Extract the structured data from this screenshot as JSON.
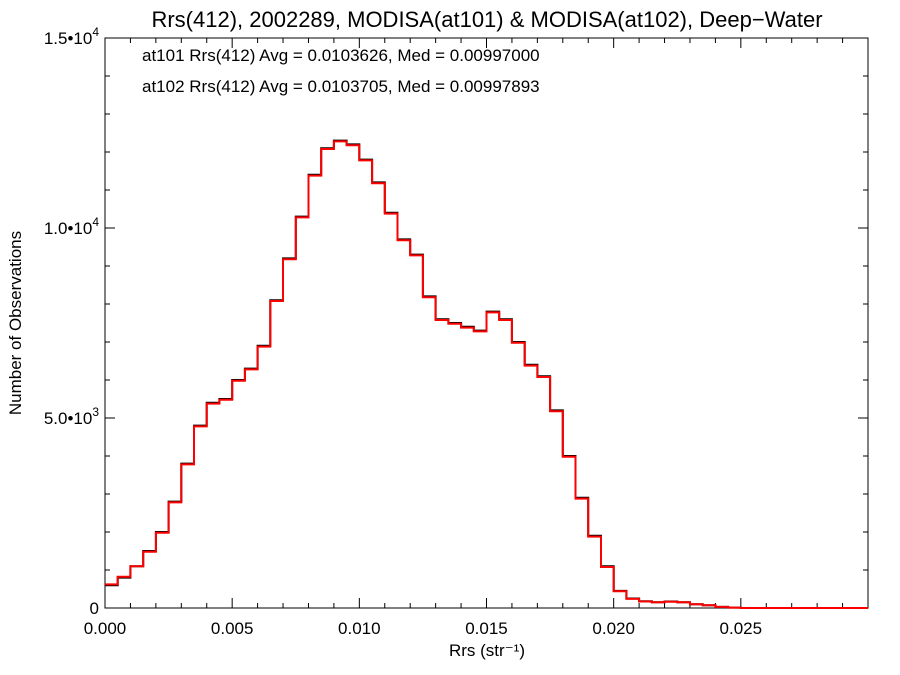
{
  "chart_data": {
    "type": "line",
    "title": "Rrs(412), 2002289, MODISA(at101) & MODISA(at102), Deep−Water",
    "xlabel": "Rrs (str⁻¹)",
    "ylabel": "Number of Observations",
    "xlim": [
      0,
      0.03
    ],
    "ylim": [
      0,
      15000
    ],
    "xticks": [
      {
        "value": 0.0,
        "label": "0.000"
      },
      {
        "value": 0.005,
        "label": "0.005"
      },
      {
        "value": 0.01,
        "label": "0.010"
      },
      {
        "value": 0.015,
        "label": "0.015"
      },
      {
        "value": 0.02,
        "label": "0.020"
      },
      {
        "value": 0.025,
        "label": "0.025"
      }
    ],
    "yticks": [
      {
        "value": 0,
        "mantissa": "0",
        "exponent": ""
      },
      {
        "value": 5000,
        "mantissa": "5.0•10",
        "exponent": "3"
      },
      {
        "value": 10000,
        "mantissa": "1.0•10",
        "exponent": "4"
      },
      {
        "value": 15000,
        "mantissa": "1.5•10",
        "exponent": "4"
      }
    ],
    "grid": false,
    "legend_placement": "top-left",
    "series": [
      {
        "name": "at101",
        "legend": "at101 Rrs(412) Avg = 0.0103626, Med = 0.00997000",
        "color": "#000000",
        "x": [
          0.0,
          0.0005,
          0.001,
          0.0015,
          0.002,
          0.0025,
          0.003,
          0.0035,
          0.004,
          0.0045,
          0.005,
          0.0055,
          0.006,
          0.0065,
          0.007,
          0.0075,
          0.008,
          0.0085,
          0.009,
          0.0095,
          0.01,
          0.0105,
          0.011,
          0.0115,
          0.012,
          0.0125,
          0.013,
          0.0135,
          0.014,
          0.0145,
          0.015,
          0.0155,
          0.016,
          0.0165,
          0.017,
          0.0175,
          0.018,
          0.0185,
          0.019,
          0.0195,
          0.02,
          0.0205,
          0.021,
          0.0215,
          0.022,
          0.0225,
          0.023,
          0.0235,
          0.024,
          0.0245,
          0.025,
          0.026,
          0.027,
          0.028,
          0.029,
          0.03
        ],
        "y": [
          600,
          800,
          1100,
          1500,
          2000,
          2800,
          3800,
          4800,
          5400,
          5500,
          6000,
          6300,
          6900,
          8100,
          9200,
          10300,
          11400,
          12100,
          12300,
          12200,
          11800,
          11200,
          10400,
          9700,
          9300,
          8200,
          7600,
          7500,
          7400,
          7300,
          7800,
          7600,
          7000,
          6400,
          6100,
          5200,
          4000,
          2900,
          1900,
          1100,
          450,
          250,
          180,
          150,
          170,
          150,
          100,
          70,
          30,
          10,
          0,
          0,
          0,
          0,
          0,
          0
        ]
      },
      {
        "name": "at102",
        "legend": "at102 Rrs(412) Avg = 0.0103705, Med = 0.00997893",
        "color": "#ff0000",
        "x": [
          0.0,
          0.0005,
          0.001,
          0.0015,
          0.002,
          0.0025,
          0.003,
          0.0035,
          0.004,
          0.0045,
          0.005,
          0.0055,
          0.006,
          0.0065,
          0.007,
          0.0075,
          0.008,
          0.0085,
          0.009,
          0.0095,
          0.01,
          0.0105,
          0.011,
          0.0115,
          0.012,
          0.0125,
          0.013,
          0.0135,
          0.014,
          0.0145,
          0.015,
          0.0155,
          0.016,
          0.0165,
          0.017,
          0.0175,
          0.018,
          0.0185,
          0.019,
          0.0195,
          0.02,
          0.0205,
          0.021,
          0.0215,
          0.022,
          0.0225,
          0.023,
          0.0235,
          0.024,
          0.0245,
          0.025,
          0.026,
          0.027,
          0.028,
          0.029,
          0.03
        ],
        "y": [
          620,
          820,
          1100,
          1480,
          1980,
          2780,
          3780,
          4780,
          5380,
          5480,
          5980,
          6280,
          6880,
          8080,
          9180,
          10280,
          11380,
          12080,
          12280,
          12180,
          11780,
          11180,
          10380,
          9680,
          9280,
          8180,
          7580,
          7480,
          7380,
          7280,
          7780,
          7580,
          6980,
          6380,
          6080,
          5180,
          3980,
          2880,
          1880,
          1080,
          440,
          240,
          170,
          150,
          165,
          150,
          100,
          70,
          30,
          10,
          0,
          0,
          0,
          0,
          0,
          0
        ]
      }
    ]
  }
}
